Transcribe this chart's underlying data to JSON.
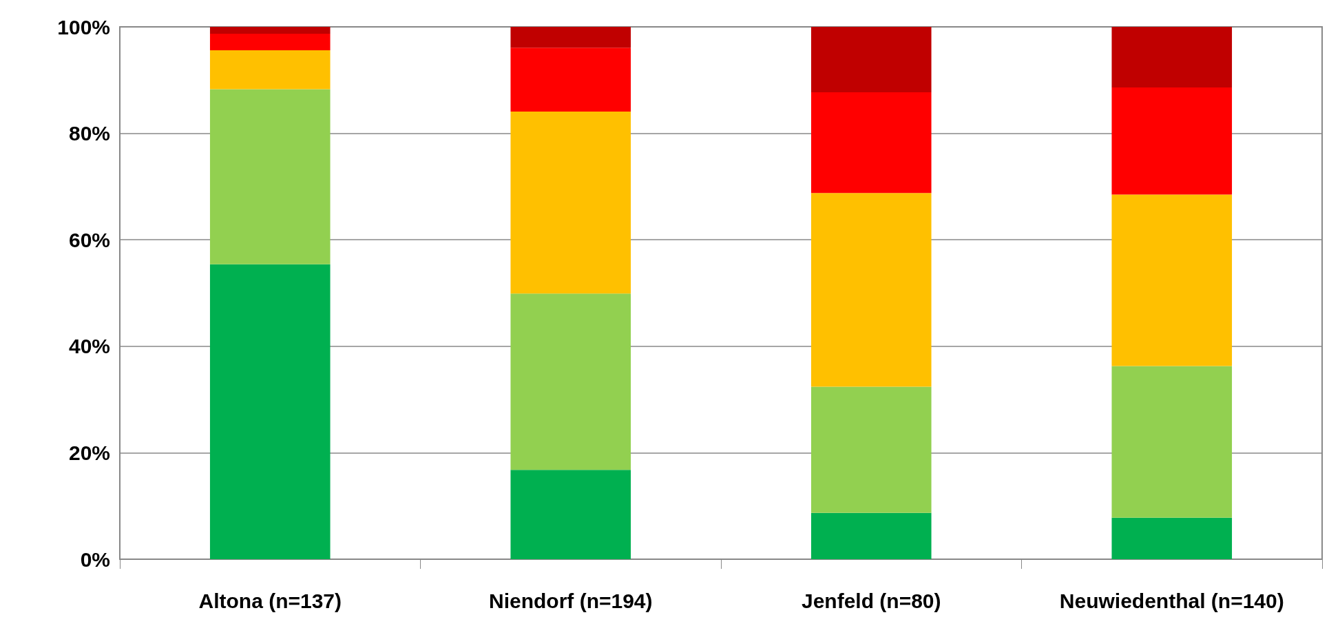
{
  "chart_data": {
    "type": "bar",
    "stacked": true,
    "categories": [
      "Altona (n=137)",
      "Niendorf (n=194)",
      "Jenfeld (n=80)",
      "Neuwiedenthal (n=140)"
    ],
    "series": [
      {
        "color": "#00b050",
        "values": [
          55.4,
          16.8,
          8.7,
          7.8
        ]
      },
      {
        "color": "#92d050",
        "values": [
          32.9,
          33.1,
          23.7,
          28.5
        ]
      },
      {
        "color": "#ffc000",
        "values": [
          7.3,
          34.2,
          36.4,
          32.2
        ]
      },
      {
        "color": "#ff0000",
        "values": [
          3.1,
          12.0,
          18.9,
          20.1
        ]
      },
      {
        "color": "#c00000",
        "values": [
          1.3,
          3.9,
          12.3,
          11.4
        ]
      }
    ],
    "ylim": [
      0,
      100
    ],
    "yticks": [
      {
        "value": 0,
        "label": "0%"
      },
      {
        "value": 20,
        "label": "20%"
      },
      {
        "value": 40,
        "label": "40%"
      },
      {
        "value": 60,
        "label": "60%"
      },
      {
        "value": 80,
        "label": "80%"
      },
      {
        "value": 100,
        "label": "100%"
      }
    ],
    "grid": "y"
  }
}
